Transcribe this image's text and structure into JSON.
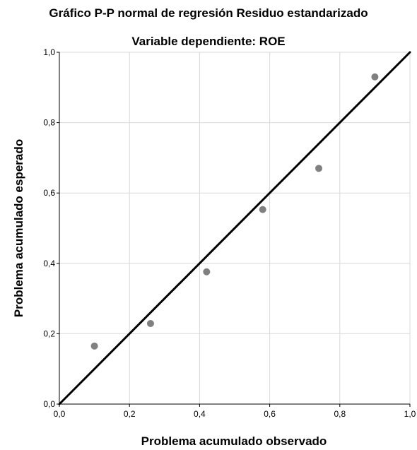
{
  "chart_data": {
    "type": "scatter",
    "title": "Gráfico P-P normal de regresión Residuo estandarizado",
    "subtitle": "Variable dependiente: ROE",
    "xlabel": "Problema acumulado observado",
    "ylabel": "Problema acumulado esperado",
    "xlim": [
      0,
      1
    ],
    "ylim": [
      0,
      1
    ],
    "x_ticks": [
      "0,0",
      "0,2",
      "0,4",
      "0,6",
      "0,8",
      "1,0"
    ],
    "y_ticks": [
      "0,0",
      "0,2",
      "0,4",
      "0,6",
      "0,8",
      "1,0"
    ],
    "grid": true,
    "reference_line": {
      "from": [
        0,
        0
      ],
      "to": [
        1,
        1
      ]
    },
    "series": [
      {
        "x": [
          0.1,
          0.26,
          0.42,
          0.58,
          0.74,
          0.9
        ],
        "y": [
          0.165,
          0.229,
          0.376,
          0.553,
          0.67,
          0.93
        ]
      }
    ],
    "colors": {
      "marker": "#808080",
      "line": "#000000",
      "grid": "#d9d9d9",
      "axis": "#000000"
    }
  }
}
